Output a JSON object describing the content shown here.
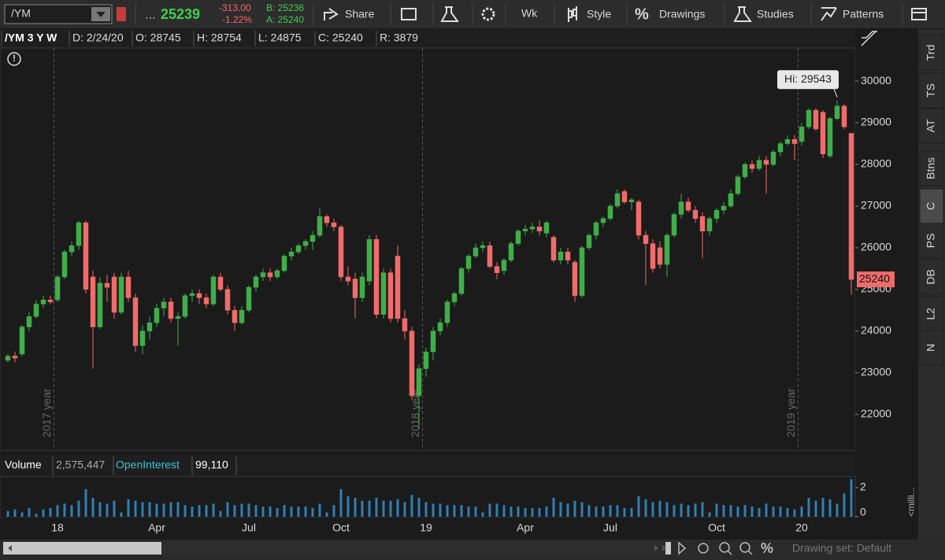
{
  "toolbar": {
    "symbol": "/YM",
    "last": "25239",
    "change": "-313.00",
    "change_pct": "-1.22%",
    "bid": "B: 25236",
    "ask": "A: 25240",
    "buttons": [
      "Share",
      "Wk",
      "Style",
      "Drawings",
      "Studies",
      "Patterns"
    ]
  },
  "header": {
    "items": [
      "/YM 3 Y W",
      "D: 2/24/20",
      "O: 28745",
      "H: 28754",
      "L: 24875",
      "C: 25240",
      "R: 3879"
    ]
  },
  "side_tabs": [
    "Trd",
    "TS",
    "AT",
    "Btns",
    "C",
    "PS",
    "DB",
    "L2",
    "N"
  ],
  "footer": {
    "drawing_set": "Drawing set: Default"
  },
  "chart_data": {
    "type": "candlestick",
    "categories": [
      null,
      null,
      null,
      null,
      null,
      null,
      null,
      "18",
      null,
      null,
      null,
      null,
      null,
      null,
      null,
      null,
      null,
      null,
      null,
      null,
      null,
      "Apr",
      null,
      null,
      null,
      null,
      null,
      null,
      null,
      null,
      null,
      null,
      null,
      null,
      "Jul",
      null,
      null,
      null,
      null,
      null,
      null,
      null,
      null,
      null,
      null,
      null,
      null,
      "Oct",
      null,
      null,
      null,
      null,
      null,
      null,
      null,
      null,
      null,
      null,
      null,
      "19",
      null,
      null,
      null,
      null,
      null,
      null,
      null,
      null,
      null,
      null,
      null,
      null,
      null,
      "Apr",
      null,
      null,
      null,
      null,
      null,
      null,
      null,
      null,
      null,
      null,
      null,
      "Jul",
      null,
      null,
      null,
      null,
      null,
      null,
      null,
      null,
      null,
      null,
      null,
      null,
      null,
      null,
      "Oct",
      null,
      null,
      null,
      null,
      null,
      null,
      null,
      null,
      null,
      null,
      null,
      "20",
      null,
      null,
      null,
      null,
      null,
      null,
      null
    ],
    "open": [
      23300,
      23400,
      23450,
      24100,
      24350,
      24650,
      24750,
      24750,
      25300,
      25900,
      26050,
      26600,
      25300,
      24100,
      25150,
      25300,
      24450,
      25300,
      24800,
      23650,
      24000,
      24200,
      24550,
      24700,
      24300,
      24350,
      24850,
      24900,
      24800,
      24650,
      25300,
      25000,
      24500,
      24200,
      24500,
      25050,
      25300,
      25400,
      25300,
      25450,
      25800,
      25900,
      26050,
      26150,
      26300,
      26750,
      26600,
      26500,
      25300,
      25250,
      24800,
      25200,
      26200,
      24400,
      25400,
      25800,
      24300,
      24000,
      22450,
      23100,
      23500,
      24000,
      24200,
      24700,
      24900,
      25500,
      25800,
      26000,
      26050,
      25550,
      25450,
      25700,
      26100,
      26400,
      26450,
      26500,
      26350,
      26250,
      25700,
      25900,
      25650,
      24850,
      26000,
      26300,
      26600,
      26700,
      27000,
      27350,
      27100,
      27100,
      26300,
      26100,
      26000,
      25600,
      26300,
      26800,
      27100,
      26900,
      26750,
      26400,
      26700,
      26900,
      27000,
      27300,
      27700,
      28000,
      27900,
      28100,
      28000,
      28300,
      28500,
      28600,
      28550,
      28900,
      29300,
      29250,
      28200,
      29100,
      29400,
      28745
    ],
    "high": [
      23450,
      23500,
      24150,
      24450,
      24750,
      24850,
      24850,
      25350,
      25950,
      26150,
      26650,
      26650,
      25450,
      25300,
      25350,
      25400,
      25400,
      25450,
      24900,
      24150,
      24350,
      24650,
      24800,
      24800,
      24450,
      24900,
      25000,
      25000,
      24900,
      25350,
      25400,
      25100,
      24600,
      24600,
      25100,
      25350,
      25500,
      25500,
      25500,
      25850,
      26000,
      26100,
      26200,
      26400,
      26950,
      26800,
      26700,
      26550,
      25550,
      25400,
      25400,
      26300,
      26300,
      25500,
      25500,
      26050,
      24500,
      24100,
      23200,
      23600,
      24100,
      24300,
      24750,
      24950,
      25550,
      25850,
      26100,
      26150,
      26150,
      25650,
      25750,
      26150,
      26450,
      26550,
      26600,
      26650,
      26650,
      26300,
      26000,
      26000,
      25700,
      26050,
      26350,
      26650,
      26750,
      27050,
      27400,
      27400,
      27200,
      27150,
      26400,
      26200,
      26150,
      26350,
      26850,
      27300,
      27200,
      27000,
      26850,
      26750,
      26950,
      27100,
      27400,
      27750,
      28050,
      28100,
      28200,
      28200,
      28350,
      28550,
      28700,
      28700,
      29000,
      29350,
      29350,
      29300,
      29150,
      29543,
      29450,
      28754
    ],
    "low": [
      23250,
      23250,
      23400,
      24000,
      24300,
      24550,
      24650,
      24700,
      25250,
      25800,
      25950,
      24900,
      23100,
      24050,
      24700,
      24300,
      24400,
      24700,
      23500,
      23450,
      23800,
      24100,
      24350,
      24200,
      23650,
      24300,
      24700,
      24650,
      24550,
      24600,
      24950,
      24400,
      24000,
      24150,
      24450,
      24950,
      25200,
      25200,
      25250,
      25400,
      25700,
      25850,
      25950,
      25950,
      26250,
      26500,
      26400,
      25200,
      25100,
      24300,
      24700,
      25100,
      24300,
      24300,
      24200,
      24200,
      23800,
      22350,
      21650,
      22900,
      23300,
      23900,
      24100,
      24600,
      24850,
      25400,
      25750,
      25900,
      25500,
      25250,
      25350,
      25650,
      26050,
      26300,
      26350,
      26300,
      26250,
      25650,
      25600,
      25600,
      24700,
      24800,
      25950,
      26200,
      26500,
      26650,
      26950,
      27050,
      26900,
      26200,
      25100,
      25400,
      25500,
      25300,
      26250,
      26700,
      26850,
      26600,
      25750,
      26300,
      26600,
      26800,
      26950,
      27250,
      27650,
      27800,
      27850,
      27300,
      27950,
      28200,
      28450,
      28100,
      28450,
      28850,
      28800,
      28150,
      28150,
      29050,
      28850,
      24875
    ],
    "close": [
      23400,
      23350,
      24100,
      24350,
      24650,
      24750,
      24700,
      25300,
      25900,
      26050,
      26600,
      25000,
      24100,
      25150,
      25050,
      24450,
      25300,
      24800,
      23650,
      24000,
      24200,
      24550,
      24700,
      24300,
      24350,
      24850,
      24900,
      24800,
      24650,
      25300,
      25000,
      24500,
      24200,
      24500,
      25050,
      25300,
      25400,
      25300,
      25450,
      25800,
      25900,
      26050,
      26150,
      26300,
      26750,
      26600,
      26500,
      25300,
      25200,
      24800,
      25300,
      26200,
      24400,
      25400,
      24300,
      24300,
      24000,
      22450,
      23100,
      23500,
      24000,
      24200,
      24700,
      24900,
      25500,
      25800,
      26000,
      26050,
      25550,
      25400,
      25700,
      26100,
      26400,
      26450,
      26500,
      26400,
      26600,
      25700,
      25900,
      25700,
      24850,
      26000,
      26300,
      26600,
      26700,
      27000,
      27300,
      27100,
      27150,
      26300,
      26100,
      25500,
      25600,
      26300,
      26800,
      27100,
      26900,
      26700,
      26400,
      26700,
      26900,
      27000,
      27300,
      27700,
      28000,
      27900,
      28100,
      28000,
      28300,
      28500,
      28600,
      28500,
      28900,
      29300,
      28850,
      28250,
      29100,
      29400,
      28900,
      25240
    ],
    "up_color": "#3fae49",
    "down_color": "#f26b6b",
    "ylim": [
      21130,
      31190
    ],
    "yticks": [
      22000,
      23000,
      24000,
      25000,
      26000,
      27000,
      28000,
      29000,
      30000
    ],
    "grid": false,
    "annotations": {
      "hi_label": "Hi: 29543",
      "last_label": "25240",
      "year_labels": [
        "2017 year",
        "2018 year",
        "2019 year"
      ]
    },
    "volume": {
      "name": "Volume",
      "readout": "2,575,447",
      "unit_label": "<milli...",
      "color": "#2f7fb5",
      "ylim": [
        0,
        2.7
      ],
      "yticks": [
        0,
        2
      ],
      "values": [
        0.4,
        0.5,
        0.3,
        0.6,
        0.2,
        0.5,
        0.6,
        0.8,
        0.9,
        0.8,
        1.1,
        1.9,
        1.3,
        1.0,
        0.9,
        1.1,
        0.3,
        1.2,
        1.1,
        1.0,
        1.0,
        0.9,
        0.9,
        1.0,
        1.0,
        0.8,
        0.7,
        0.8,
        0.8,
        0.9,
        0.4,
        1.0,
        0.8,
        0.9,
        0.9,
        0.8,
        0.7,
        0.7,
        0.6,
        0.8,
        0.7,
        0.7,
        0.7,
        0.6,
        0.9,
        0.3,
        0.8,
        1.9,
        1.4,
        1.3,
        1.1,
        1.1,
        1.3,
        1.1,
        1.1,
        1.2,
        1.0,
        1.5,
        1.3,
        1.0,
        0.9,
        0.9,
        0.8,
        0.8,
        0.8,
        0.7,
        0.7,
        0.3,
        0.9,
        0.9,
        0.8,
        0.7,
        0.7,
        0.6,
        0.6,
        0.6,
        0.7,
        1.3,
        1.0,
        0.9,
        1.1,
        1.0,
        0.8,
        0.7,
        0.7,
        0.8,
        0.8,
        0.6,
        0.6,
        1.4,
        1.2,
        1.0,
        1.1,
        1.0,
        0.8,
        0.9,
        0.8,
        0.9,
        1.0,
        0.3,
        0.9,
        0.8,
        0.8,
        0.7,
        0.8,
        0.7,
        0.6,
        0.9,
        0.7,
        0.7,
        0.6,
        0.5,
        0.7,
        1.3,
        1.1,
        1.3,
        1.2,
        0.9,
        1.6,
        2.575447
      ]
    },
    "open_interest": {
      "name": "OpenInterest",
      "readout": "99,110"
    }
  }
}
